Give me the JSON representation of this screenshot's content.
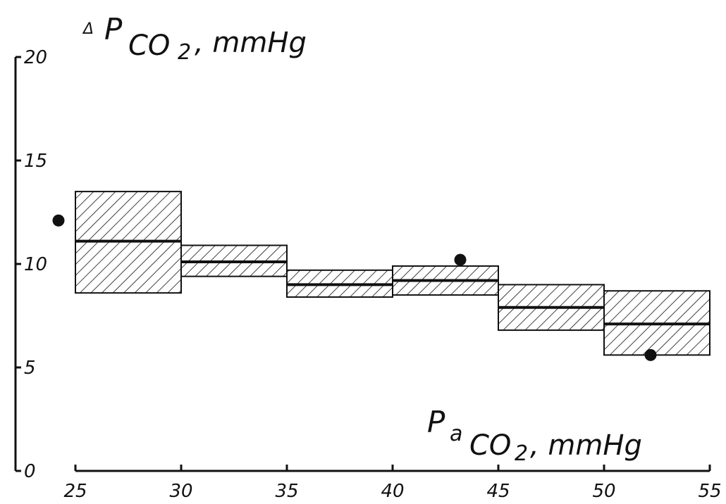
{
  "chart_data": {
    "type": "bar",
    "title": "",
    "xlabel": "PaCO2, mmHg",
    "ylabel": "ΔPCO2, mmHg",
    "ylabel_parts": {
      "delta": "Δ",
      "symbol": "P",
      "sub": "CO",
      "sub2": "2",
      "unit": ", mmHg"
    },
    "xlabel_parts": {
      "symbol": "P",
      "sub": "a",
      "gas": "CO",
      "gas_sub": "2",
      "unit": ", mmHg"
    },
    "xlim": [
      25,
      55
    ],
    "ylim": [
      0,
      20
    ],
    "x_tick_labels": [
      "25",
      "30",
      "35",
      "40",
      "45",
      "50",
      "55"
    ],
    "y_tick_labels": [
      "0",
      "5",
      "10",
      "15",
      "20"
    ],
    "x_ticks": [
      25,
      30,
      35,
      40,
      45,
      50,
      55
    ],
    "y_ticks": [
      0,
      5,
      10,
      15,
      20
    ],
    "grid": false,
    "bins": [
      {
        "x0": 25,
        "x1": 30,
        "mean": 11.1,
        "lower": 8.6,
        "upper": 13.5
      },
      {
        "x0": 30,
        "x1": 35,
        "mean": 10.1,
        "lower": 9.4,
        "upper": 10.9
      },
      {
        "x0": 35,
        "x1": 40,
        "mean": 9.0,
        "lower": 8.4,
        "upper": 9.7
      },
      {
        "x0": 40,
        "x1": 45,
        "mean": 9.2,
        "lower": 8.5,
        "upper": 9.9
      },
      {
        "x0": 45,
        "x1": 50,
        "mean": 7.9,
        "lower": 6.8,
        "upper": 9.0
      },
      {
        "x0": 50,
        "x1": 55,
        "mean": 7.1,
        "lower": 5.6,
        "upper": 8.7
      }
    ],
    "points": [
      {
        "x": 24.2,
        "y": 12.1
      },
      {
        "x": 43.2,
        "y": 10.2
      },
      {
        "x": 52.2,
        "y": 5.6
      }
    ],
    "colors": {
      "ink": "#111111",
      "background": "#ffffff"
    }
  }
}
